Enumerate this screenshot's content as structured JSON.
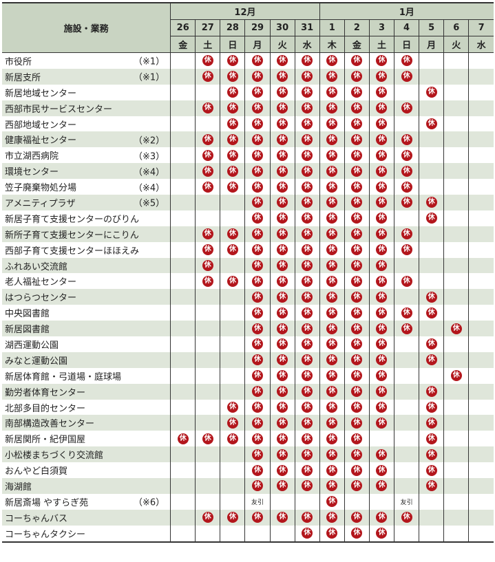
{
  "header": {
    "facility_label": "施設・業務",
    "months": [
      {
        "label": "12月",
        "span": 6
      },
      {
        "label": "1月",
        "span": 7
      }
    ],
    "dates": [
      "26",
      "27",
      "28",
      "29",
      "30",
      "31",
      "1",
      "2",
      "3",
      "4",
      "5",
      "6",
      "7"
    ],
    "weekdays": [
      "金",
      "土",
      "日",
      "月",
      "火",
      "水",
      "木",
      "金",
      "土",
      "日",
      "月",
      "火",
      "水"
    ]
  },
  "colors": {
    "closed_badge": "#b3161c",
    "stripe": "#dfe6da",
    "header_bg": "#c9d4c2"
  },
  "closed_mark": "休",
  "rows": [
    {
      "name": "市役所",
      "note": "（※1）",
      "cells": [
        "",
        "休",
        "休",
        "休",
        "休",
        "休",
        "休",
        "休",
        "休",
        "休",
        "",
        "",
        ""
      ]
    },
    {
      "name": "新居支所",
      "note": "（※1）",
      "cells": [
        "",
        "休",
        "休",
        "休",
        "休",
        "休",
        "休",
        "休",
        "休",
        "休",
        "",
        "",
        ""
      ]
    },
    {
      "name": "新居地域センター",
      "note": "",
      "cells": [
        "",
        "",
        "休",
        "休",
        "休",
        "休",
        "休",
        "休",
        "休",
        "",
        "休",
        "",
        ""
      ]
    },
    {
      "name": "西部市民サービスセンター",
      "note": "",
      "cells": [
        "",
        "休",
        "休",
        "休",
        "休",
        "休",
        "休",
        "休",
        "休",
        "休",
        "",
        "",
        ""
      ]
    },
    {
      "name": "西部地域センター",
      "note": "",
      "cells": [
        "",
        "",
        "休",
        "休",
        "休",
        "休",
        "休",
        "休",
        "休",
        "",
        "休",
        "",
        ""
      ]
    },
    {
      "name": "健康福祉センター",
      "note": "（※2）",
      "cells": [
        "",
        "休",
        "休",
        "休",
        "休",
        "休",
        "休",
        "休",
        "休",
        "休",
        "",
        "",
        ""
      ]
    },
    {
      "name": "市立湖西病院",
      "note": "（※3）",
      "cells": [
        "",
        "休",
        "休",
        "休",
        "休",
        "休",
        "休",
        "休",
        "休",
        "休",
        "",
        "",
        ""
      ]
    },
    {
      "name": "環境センター",
      "note": "（※4）",
      "cells": [
        "",
        "休",
        "休",
        "休",
        "休",
        "休",
        "休",
        "休",
        "休",
        "休",
        "",
        "",
        ""
      ]
    },
    {
      "name": "笠子廃棄物処分場",
      "note": "（※4）",
      "cells": [
        "",
        "休",
        "休",
        "休",
        "休",
        "休",
        "休",
        "休",
        "休",
        "休",
        "",
        "",
        ""
      ]
    },
    {
      "name": "アメニティプラザ",
      "note": "（※5）",
      "cells": [
        "",
        "",
        "",
        "休",
        "休",
        "休",
        "休",
        "休",
        "休",
        "休",
        "休",
        "",
        ""
      ]
    },
    {
      "name": "新居子育て支援センターのびりん",
      "note": "",
      "cells": [
        "",
        "",
        "",
        "休",
        "休",
        "休",
        "休",
        "休",
        "休",
        "",
        "休",
        "",
        ""
      ]
    },
    {
      "name": "新所子育て支援センターにこりん",
      "note": "",
      "cells": [
        "",
        "休",
        "休",
        "休",
        "休",
        "休",
        "休",
        "休",
        "休",
        "休",
        "",
        "",
        ""
      ]
    },
    {
      "name": "西部子育て支援センターほほえみ",
      "note": "",
      "cells": [
        "",
        "休",
        "休",
        "休",
        "休",
        "休",
        "休",
        "休",
        "休",
        "休",
        "",
        "",
        ""
      ]
    },
    {
      "name": "ふれあい交流館",
      "note": "",
      "cells": [
        "",
        "休",
        "",
        "休",
        "休",
        "休",
        "休",
        "休",
        "休",
        "",
        "",
        "",
        ""
      ]
    },
    {
      "name": "老人福祉センター",
      "note": "",
      "cells": [
        "",
        "休",
        "休",
        "休",
        "休",
        "休",
        "休",
        "休",
        "休",
        "休",
        "",
        "",
        ""
      ]
    },
    {
      "name": "はつらつセンター",
      "note": "",
      "cells": [
        "",
        "",
        "",
        "休",
        "休",
        "休",
        "休",
        "休",
        "休",
        "",
        "休",
        "",
        ""
      ]
    },
    {
      "name": "中央図書館",
      "note": "",
      "cells": [
        "",
        "",
        "",
        "休",
        "休",
        "休",
        "休",
        "休",
        "休",
        "休",
        "休",
        "",
        ""
      ]
    },
    {
      "name": "新居図書館",
      "note": "",
      "cells": [
        "",
        "",
        "",
        "休",
        "休",
        "休",
        "休",
        "休",
        "休",
        "休",
        "",
        "休",
        ""
      ]
    },
    {
      "name": "湖西運動公園",
      "note": "",
      "cells": [
        "",
        "",
        "",
        "休",
        "休",
        "休",
        "休",
        "休",
        "休",
        "",
        "休",
        "",
        ""
      ]
    },
    {
      "name": "みなと運動公園",
      "note": "",
      "cells": [
        "",
        "",
        "",
        "休",
        "休",
        "休",
        "休",
        "休",
        "休",
        "",
        "休",
        "",
        ""
      ]
    },
    {
      "name": "新居体育館・弓道場・庭球場",
      "note": "",
      "cells": [
        "",
        "",
        "",
        "休",
        "休",
        "休",
        "休",
        "休",
        "休",
        "",
        "",
        "休",
        ""
      ]
    },
    {
      "name": "勤労者体育センター",
      "note": "",
      "cells": [
        "",
        "",
        "",
        "休",
        "休",
        "休",
        "休",
        "休",
        "休",
        "",
        "休",
        "",
        ""
      ]
    },
    {
      "name": "北部多目的センター",
      "note": "",
      "cells": [
        "",
        "",
        "休",
        "休",
        "休",
        "休",
        "休",
        "休",
        "休",
        "",
        "休",
        "",
        ""
      ]
    },
    {
      "name": "南部構造改善センター",
      "note": "",
      "cells": [
        "",
        "",
        "休",
        "休",
        "休",
        "休",
        "休",
        "休",
        "休",
        "",
        "休",
        "",
        ""
      ]
    },
    {
      "name": "新居関所・紀伊国屋",
      "note": "",
      "cells": [
        "休",
        "休",
        "休",
        "休",
        "休",
        "休",
        "休",
        "休",
        "",
        "",
        "休",
        "",
        ""
      ]
    },
    {
      "name": "小松楼まちづくり交流館",
      "note": "",
      "cells": [
        "",
        "",
        "",
        "休",
        "休",
        "休",
        "休",
        "休",
        "休",
        "",
        "休",
        "",
        ""
      ]
    },
    {
      "name": "おんやど白須賀",
      "note": "",
      "cells": [
        "",
        "",
        "",
        "休",
        "休",
        "休",
        "休",
        "休",
        "休",
        "",
        "休",
        "",
        ""
      ]
    },
    {
      "name": "海湖館",
      "note": "",
      "cells": [
        "",
        "",
        "",
        "休",
        "休",
        "休",
        "休",
        "休",
        "休",
        "",
        "休",
        "",
        ""
      ]
    },
    {
      "name": "新居斎場 やすらぎ苑",
      "note": "（※6）",
      "cells": [
        "",
        "",
        "",
        "友引",
        "",
        "",
        "休",
        "",
        "",
        "友引",
        "",
        "",
        ""
      ]
    },
    {
      "name": "コーちゃんバス",
      "note": "",
      "cells": [
        "",
        "休",
        "休",
        "休",
        "休",
        "休",
        "休",
        "休",
        "休",
        "休",
        "",
        "",
        ""
      ]
    },
    {
      "name": "コーちゃんタクシー",
      "note": "",
      "cells": [
        "",
        "",
        "",
        "",
        "",
        "休",
        "休",
        "休",
        "休",
        "",
        "",
        "",
        ""
      ]
    }
  ]
}
